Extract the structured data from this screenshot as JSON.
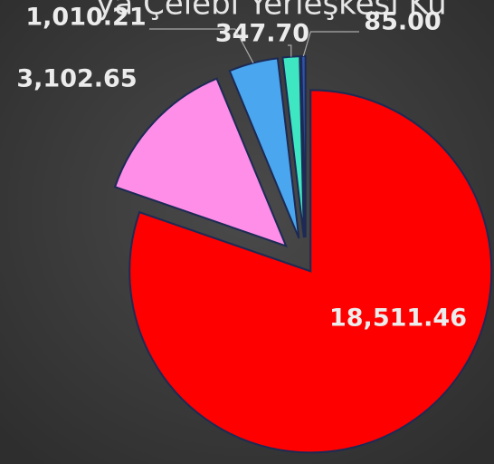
{
  "chart_data": {
    "type": "pie",
    "title": "ya Çelebi Yerleşkesi Ku",
    "categories": [
      null,
      null,
      null,
      null,
      null
    ],
    "values": [
      18511.46,
      3102.65,
      1010.21,
      347.7,
      85.0
    ],
    "value_labels": [
      "18,511.46",
      "3,102.65",
      "1,010.21",
      "347.70",
      "85.00"
    ],
    "colors": [
      "#ff0000",
      "#ff8ee8",
      "#4aa6ee",
      "#3ee6c2",
      "#2f55a8"
    ]
  }
}
